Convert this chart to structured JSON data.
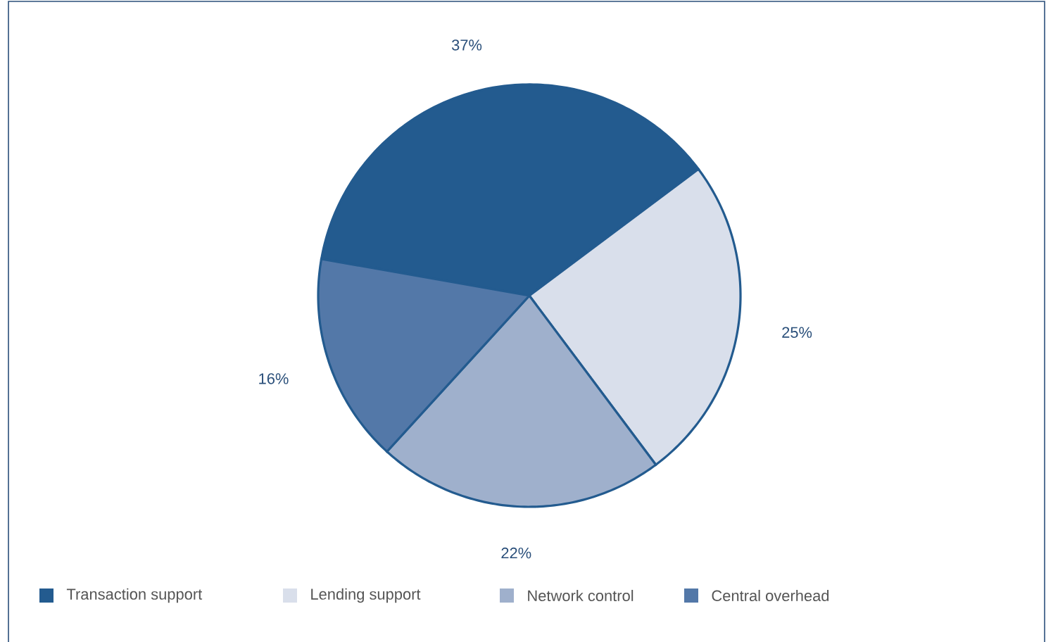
{
  "chart_data": {
    "type": "pie",
    "categories": [
      "Transaction support",
      "Lending support",
      "Network control",
      "Central overhead"
    ],
    "values": [
      37,
      25,
      22,
      16
    ],
    "value_labels": [
      "37%",
      "25%",
      "22%",
      "16%"
    ],
    "colors": [
      "#235b8f",
      "#d9dfeb",
      "#9fb0cc",
      "#5378a8"
    ],
    "legend": "bottom"
  }
}
